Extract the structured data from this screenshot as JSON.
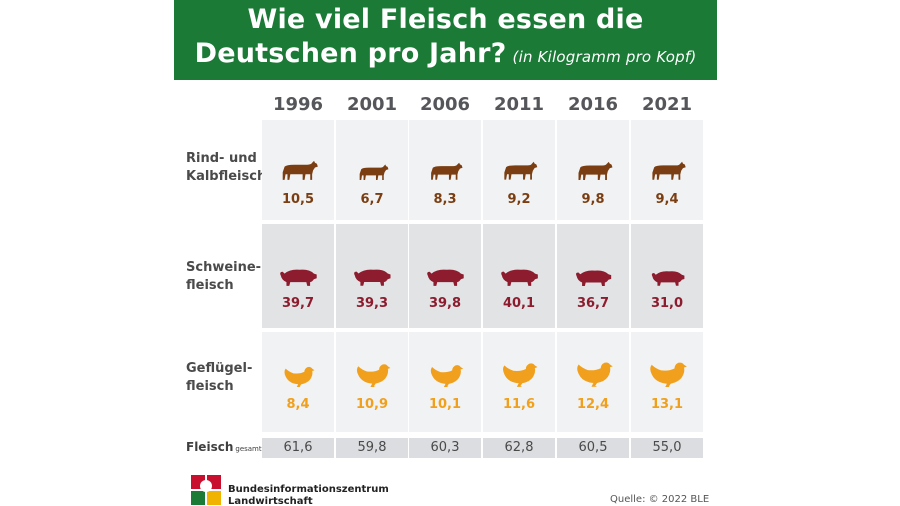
{
  "header": {
    "title_line1": "Wie viel Fleisch essen die",
    "title_line2": "Deutschen pro Jahr?",
    "subtitle": "(in Kilogramm pro Kopf)"
  },
  "chart_data": {
    "type": "table",
    "title": "Wie viel Fleisch essen die Deutschen pro Jahr?",
    "subtitle": "(in Kilogramm pro Kopf)",
    "categories": [
      "1996",
      "2001",
      "2006",
      "2011",
      "2016",
      "2021"
    ],
    "series": [
      {
        "name": "Rind- und Kalbfleisch",
        "label_line1": "Rind- und",
        "label_line2": "Kalbfleisch",
        "values": [
          10.5,
          6.7,
          8.3,
          9.2,
          9.8,
          9.4
        ],
        "display": [
          "10,5",
          "6,7",
          "8,3",
          "9,2",
          "9,8",
          "9,4"
        ],
        "color": "#7a3e12",
        "icon": "cow-icon"
      },
      {
        "name": "Schweinefleisch",
        "label_line1": "Schweine-",
        "label_line2": "fleisch",
        "values": [
          39.7,
          39.3,
          39.8,
          40.1,
          36.7,
          31.0
        ],
        "display": [
          "39,7",
          "39,3",
          "39,8",
          "40,1",
          "36,7",
          "31,0"
        ],
        "color": "#8c1c2e",
        "icon": "pig-icon"
      },
      {
        "name": "Geflügelfleisch",
        "label_line1": "Geflügel-",
        "label_line2": "fleisch",
        "values": [
          8.4,
          10.9,
          10.1,
          11.6,
          12.4,
          13.1
        ],
        "display": [
          "8,4",
          "10,9",
          "10,1",
          "11,6",
          "12,4",
          "13,1"
        ],
        "color": "#f0a01c",
        "icon": "chicken-icon"
      }
    ],
    "total": {
      "label": "Fleisch",
      "label_small": "gesamt",
      "values": [
        61.6,
        59.8,
        60.3,
        62.8,
        60.5,
        55.0
      ],
      "display": [
        "61,6",
        "59,8",
        "60,3",
        "62,8",
        "60,5",
        "55,0"
      ]
    }
  },
  "footer": {
    "org_line1": "Bundesinformationszentrum",
    "org_line2": "Landwirtschaft",
    "source": "Quelle: © 2022 BLE"
  }
}
